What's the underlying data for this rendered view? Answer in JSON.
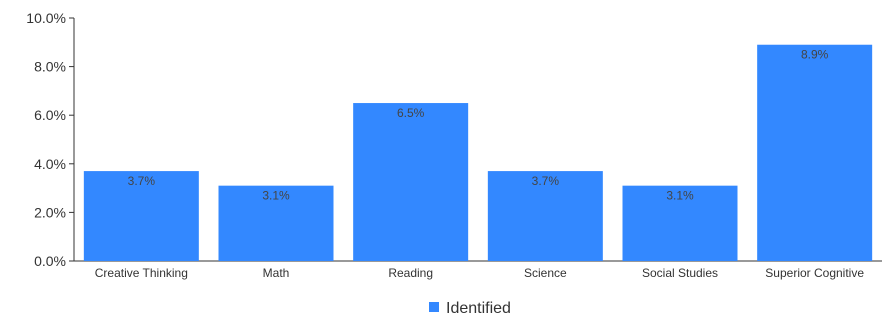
{
  "chart_data": {
    "type": "bar",
    "categories": [
      "Creative Thinking",
      "Math",
      "Reading",
      "Science",
      "Social Studies",
      "Superior Cognitive"
    ],
    "series": [
      {
        "name": "Identified",
        "values": [
          3.7,
          3.1,
          6.5,
          3.7,
          3.1,
          8.9
        ],
        "data_labels": [
          "3.7%",
          "3.1%",
          "6.5%",
          "3.7%",
          "3.1%",
          "8.9%"
        ],
        "color": "#3388ff"
      }
    ],
    "ylim": [
      0,
      10
    ],
    "y_ticks": [
      0,
      2,
      4,
      6,
      8,
      10
    ],
    "y_tick_labels": [
      "0.0%",
      "2.0%",
      "4.0%",
      "6.0%",
      "8.0%",
      "10.0%"
    ],
    "grid": false,
    "legend_position": "bottom-center",
    "xlabel": "",
    "ylabel": "",
    "title": ""
  }
}
